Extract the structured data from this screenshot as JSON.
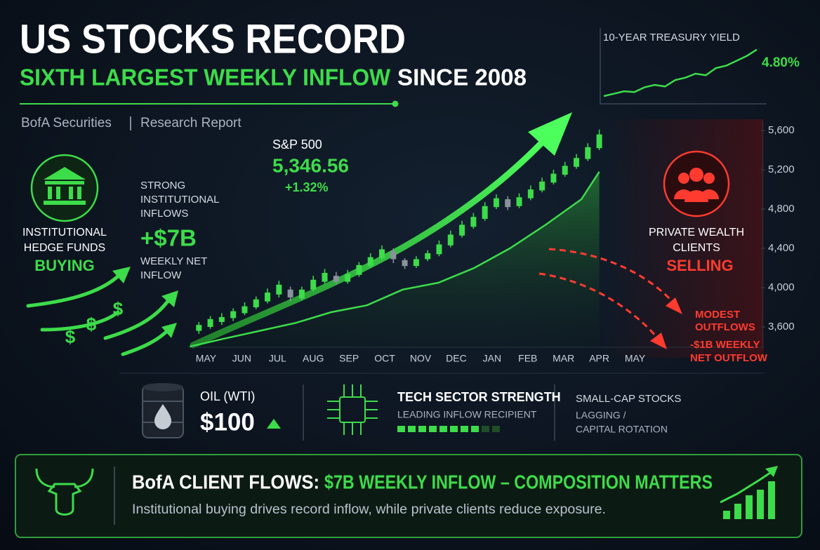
{
  "header": {
    "title": "US STOCKS RECORD",
    "subtitle_highlight": "SIXTH LARGEST WEEKLY INFLOW",
    "subtitle_rest": "SINCE 2008",
    "source": "BofA Securities",
    "report_type": "Research Report"
  },
  "treasury": {
    "title": "10-YEAR TREASURY YIELD",
    "values": [
      4.22,
      4.25,
      4.28,
      4.27,
      4.33,
      4.36,
      4.34,
      4.42,
      4.45,
      4.5,
      4.48,
      4.57,
      4.6,
      4.66,
      4.72,
      4.8
    ],
    "value_label": "4.80%",
    "ylim": [
      4.15,
      4.85
    ],
    "color": "#3ddc4a"
  },
  "sp500": {
    "label": "S&P 500",
    "level": "5,346.56",
    "change": "+1.32%"
  },
  "institutional": {
    "name_lines": [
      "INSTITUTIONAL",
      "HEDGE FUNDS"
    ],
    "action": "BUYING",
    "flow_lines": [
      "STRONG",
      "INSTITUTIONAL",
      "INFLOWS"
    ],
    "amount": "+$7B",
    "amount_lines": [
      "WEEKLY NET",
      "INFLOW"
    ],
    "icon_symbol": "$"
  },
  "private": {
    "name_lines": [
      "PRIVATE WEALTH",
      "CLIENTS"
    ],
    "action": "SELLING",
    "flow_lines": [
      "MODEST",
      "OUTFLOWS"
    ],
    "amount_lines": [
      "-$1B WEEKLY",
      "NET OUTFLOW"
    ]
  },
  "chart_data": {
    "type": "candlestick",
    "categories": [
      "MAY",
      "JUN",
      "JUL",
      "AUG",
      "SEP",
      "OCT",
      "NOV",
      "DEC",
      "JAN",
      "FEB",
      "MAR",
      "APR",
      "MAY"
    ],
    "xlim": [
      -0.5,
      12.5
    ],
    "ylim": [
      3400,
      5700
    ],
    "yticks": [
      {
        "value": 3600,
        "label": "3,600"
      },
      {
        "value": 4000,
        "label": "4,000"
      },
      {
        "value": 4400,
        "label": "4,400"
      },
      {
        "value": 4800,
        "label": "4,800"
      },
      {
        "value": 5200,
        "label": "5,200"
      },
      {
        "value": 5600,
        "label": "5,600"
      }
    ],
    "up_color": "#3ddc4a",
    "down_color": "#8a929c",
    "candles": {
      "x": [
        -0.2,
        0.12,
        0.44,
        0.76,
        1.08,
        1.4,
        1.72,
        2.04,
        2.36,
        2.68,
        3.0,
        3.32,
        3.64,
        3.96,
        4.28,
        4.6,
        4.92,
        5.24,
        5.56,
        5.88,
        6.2,
        6.52,
        6.84,
        7.16,
        7.48,
        7.8,
        8.12,
        8.44,
        8.76,
        9.08,
        9.4,
        9.72,
        10.04,
        10.36,
        10.68,
        11.0
      ],
      "open": [
        3560,
        3600,
        3650,
        3690,
        3740,
        3800,
        3860,
        3930,
        3980,
        3890,
        3980,
        4060,
        4120,
        4060,
        4130,
        4220,
        4300,
        4370,
        4280,
        4220,
        4290,
        4340,
        4430,
        4530,
        4620,
        4700,
        4820,
        4900,
        4830,
        4910,
        4990,
        5070,
        5150,
        5230,
        5310,
        5420
      ],
      "close": [
        3620,
        3680,
        3700,
        3760,
        3810,
        3880,
        3950,
        4030,
        3900,
        3980,
        4080,
        4150,
        4060,
        4140,
        4230,
        4310,
        4390,
        4290,
        4220,
        4290,
        4350,
        4440,
        4540,
        4640,
        4720,
        4830,
        4910,
        4820,
        4920,
        5000,
        5080,
        5160,
        5240,
        5320,
        5430,
        5560
      ],
      "high": [
        3650,
        3710,
        3740,
        3790,
        3850,
        3910,
        3990,
        4070,
        4010,
        4010,
        4120,
        4190,
        4160,
        4180,
        4260,
        4350,
        4430,
        4400,
        4300,
        4320,
        4380,
        4480,
        4580,
        4680,
        4760,
        4870,
        4950,
        4930,
        4960,
        5040,
        5120,
        5200,
        5280,
        5360,
        5470,
        5610
      ],
      "low": [
        3530,
        3580,
        3620,
        3660,
        3720,
        3780,
        3840,
        3900,
        3860,
        3870,
        3960,
        4040,
        4030,
        4040,
        4110,
        4200,
        4280,
        4250,
        4190,
        4200,
        4270,
        4320,
        4410,
        4510,
        4600,
        4680,
        4800,
        4790,
        4810,
        4890,
        4970,
        5050,
        5130,
        5210,
        5290,
        5400
      ]
    },
    "trend": {
      "x": [
        -0.45,
        0.5,
        1.5,
        2.5,
        3.5,
        4.5,
        5.5,
        6.5,
        7.5,
        8.5,
        9.5,
        10.5,
        11.0
      ],
      "values": [
        3400,
        3480,
        3560,
        3640,
        3750,
        3820,
        3980,
        4050,
        4200,
        4400,
        4640,
        4900,
        5180
      ],
      "color": "#3ddc4a"
    }
  },
  "panels": {
    "oil": {
      "label": "OIL (WTI)",
      "price": "$100"
    },
    "tech": {
      "title": "TECH SECTOR STRENGTH",
      "subtitle": "LEADING INFLOW RECIPIENT"
    },
    "small_cap": {
      "title": "SMALL-CAP STOCKS",
      "lines": [
        "LAGGING /",
        "CAPITAL ROTATION"
      ]
    }
  },
  "banner": {
    "title_lead": "BofA CLIENT FLOWS:",
    "title_highlight": "$7B WEEKLY INFLOW – COMPOSITION MATTERS",
    "subtitle": "Institutional buying drives record inflow, while private clients reduce exposure."
  }
}
